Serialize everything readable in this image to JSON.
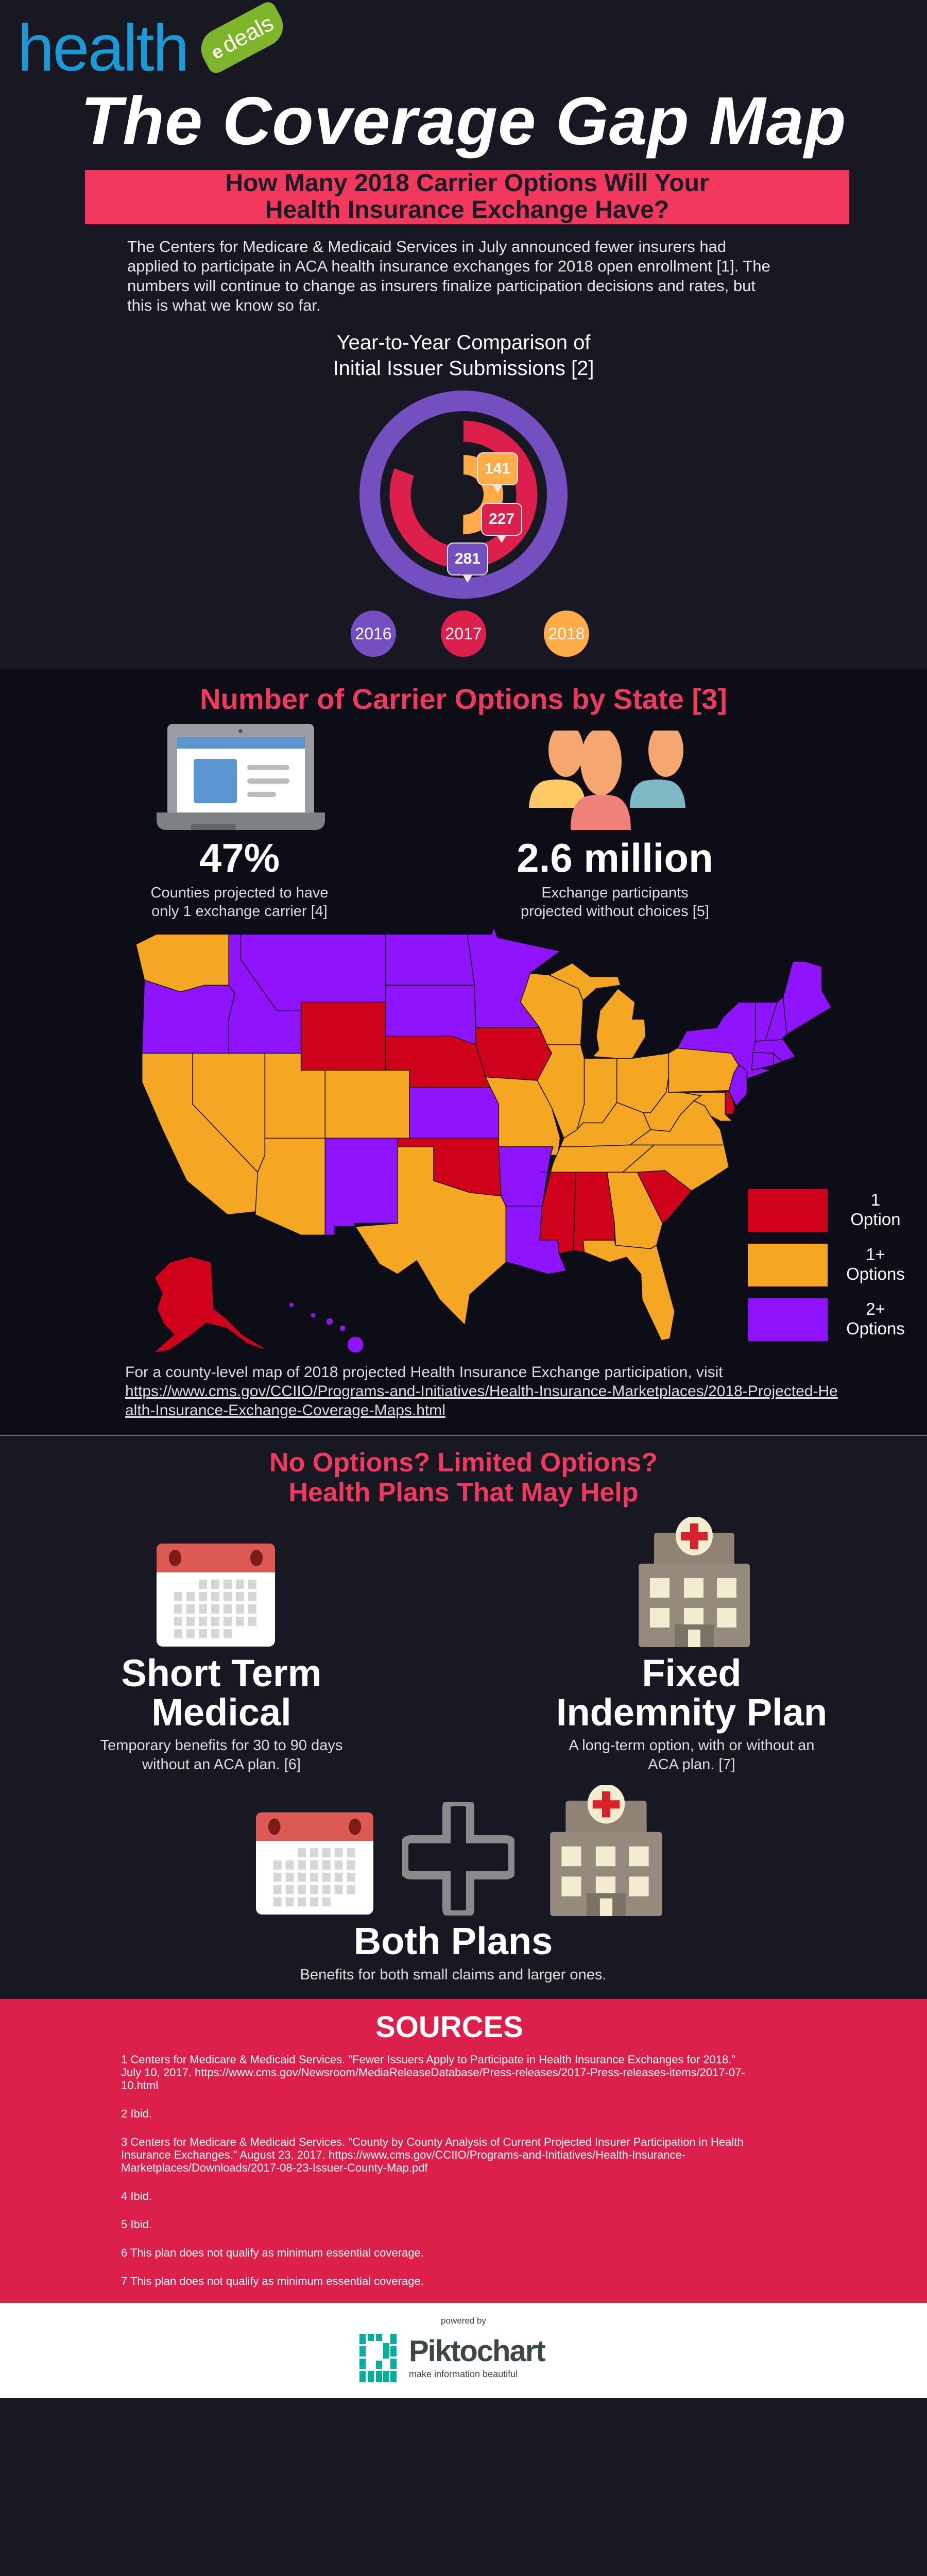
{
  "brand": {
    "logo_word": "health",
    "logo_tag_e": "e",
    "logo_tag": "deals"
  },
  "title": "The Coverage Gap Map",
  "banner": {
    "line1": "How Many 2018 Carrier Options Will Your",
    "line2": "Health Insurance Exchange Have?"
  },
  "intro": "The Centers for Medicare & Medicaid Services in July announced fewer insurers had applied to participate in ACA health insurance exchanges for 2018 open enrollment [1]. The numbers will continue to change as insurers finalize participation decisions and rates, but this is what we know so far.",
  "chart_data": {
    "type": "radial_bar",
    "title": "Year-to-Year Comparison of Initial Issuer Submissions [2]",
    "title_line1": "Year-to-Year Comparison of",
    "title_line2": "Initial Issuer Submissions [2]",
    "categories": [
      "2016",
      "2017",
      "2018"
    ],
    "values": [
      281,
      227,
      141
    ],
    "max": 281,
    "colors": [
      "#744fc0",
      "#dc1f4b",
      "#ffab47"
    ],
    "legend_placement": "bottom"
  },
  "map_section": {
    "heading": "Number of Carrier Options by State [3]",
    "stats": [
      {
        "value": "47%",
        "desc_line1": "Counties projected to have",
        "desc_line2": "only  1 exchange carrier  [4]",
        "icon": "laptop-icon"
      },
      {
        "value": "2.6 million",
        "desc_line1": "Exchange participants",
        "desc_line2": "projected without choices [5]",
        "icon": "people-icon"
      }
    ],
    "legend": [
      {
        "label": "1\nOption",
        "key": "1",
        "color": "#d0021b"
      },
      {
        "label": "1+\nOptions",
        "key": "1+",
        "color": "#f5a623"
      },
      {
        "label": "2+\nOptions",
        "key": "2+",
        "color": "#9013fe"
      }
    ],
    "state_options": {
      "WY": "1",
      "NE": "1",
      "IA": "1",
      "OK": "1",
      "MS": "1",
      "AL": "1",
      "SC": "1",
      "DE": "1",
      "AK": "1",
      "OR": "2+",
      "ID": "2+",
      "MT": "2+",
      "ND": "2+",
      "SD": "2+",
      "MN": "2+",
      "KS": "2+",
      "NM": "2+",
      "AR": "2+",
      "LA": "2+",
      "NY": "2+",
      "VT": "2+",
      "NH": "2+",
      "ME": "2+",
      "MA": "2+",
      "CT": "2+",
      "RI": "2+",
      "NJ": "2+",
      "HI": "2+",
      "WA": "1+",
      "CA": "1+",
      "NV": "1+",
      "UT": "1+",
      "CO": "1+",
      "AZ": "1+",
      "TX": "1+",
      "MO": "1+",
      "WI": "1+",
      "IL": "1+",
      "MI": "1+",
      "IN": "1+",
      "OH": "1+",
      "KY": "1+",
      "TN": "1+",
      "WV": "1+",
      "VA": "1+",
      "NC": "1+",
      "GA": "1+",
      "FL": "1+",
      "PA": "1+",
      "MD": "1+"
    },
    "note_text": "For a county-level map of 2018 projected Health Insurance Exchange participation, visit",
    "note_link": "https://www.cms.gov/CCIIO/Programs-and-Initiatives/Health-Insurance-Marketplaces/2018-Projected-Health-Insurance-Exchange-Coverage-Maps.html"
  },
  "plans_section": {
    "heading_line1": "No Options? Limited Options?",
    "heading_line2": "Health Plans That May Help",
    "plans": [
      {
        "title": "Short Term\nMedical",
        "desc": "Temporary benefits for 30 to 90 days without an ACA plan. [6]"
      },
      {
        "title": "Fixed\nIndemnity Plan",
        "desc": "A long-term option, with or without an ACA plan. [7]"
      },
      {
        "title": "Both Plans",
        "desc": "Benefits for both small claims and larger ones."
      }
    ]
  },
  "sources": {
    "heading": "SOURCES",
    "items": [
      "1 Centers for Medicare & Medicaid Services. \"Fewer Issuers Apply to Participate in Health Insurance Exchanges for 2018.\" July 10, 2017. https://www.cms.gov/Newsroom/MediaReleaseDatabase/Press-releases/2017-Press-releases-items/2017-07-10.html",
      "2 Ibid.",
      "3 Centers for Medicare & Medicaid Services. \"County by County Analysis of Current Projected Insurer Participation in Health Insurance Exchanges.\" August 23, 2017. https://www.cms.gov/CCIIO/Programs-and-Initiatives/Health-Insurance-Marketplaces/Downloads/2017-08-23-Issuer-County-Map.pdf",
      "4 Ibid.",
      "5 Ibid.",
      "6 This plan does not qualify as minimum essential coverage.",
      "7 This plan does not qualify as minimum essential coverage."
    ]
  },
  "footer": {
    "powered_by": "powered by",
    "brand": "Piktochart",
    "tagline": "make information beautiful"
  }
}
